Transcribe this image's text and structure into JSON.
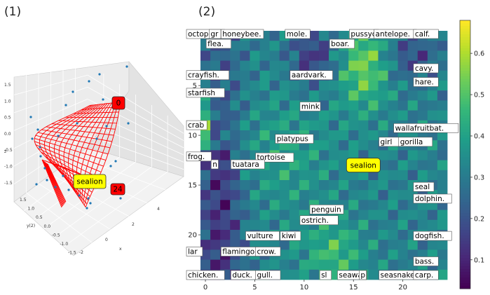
{
  "panel_labels": [
    "(1)",
    "(2)"
  ],
  "chart_data": [
    {
      "type": "scatter",
      "projection": "3d",
      "surface_color": "#ff0000",
      "point_color": "#1f77b4",
      "annotations": [
        {
          "text": "0",
          "style": "red"
        },
        {
          "text": "sealion",
          "style": "yellow"
        },
        {
          "text": "24",
          "style": "red"
        }
      ],
      "xlabel": "x",
      "ylabel": "y(2)",
      "zlabel": "z",
      "x_ticks": [
        "-2",
        "0",
        "2",
        "4"
      ],
      "y_ticks": [
        "1.5",
        "1.0",
        "0.5",
        "0.0",
        "-0.5",
        "-1.0",
        "-1.5"
      ],
      "z_ticks": [
        "1.5",
        "1.0",
        "0.5",
        "0.0",
        "-0.5",
        "-1.0",
        "-1.5"
      ]
    },
    {
      "type": "heatmap",
      "colormap": "viridis",
      "grid": [
        25,
        25
      ],
      "xlim": [
        0,
        24
      ],
      "ylim": [
        0,
        24
      ],
      "x_ticks": [
        "0",
        "5",
        "10",
        "15",
        "20"
      ],
      "y_ticks": [
        "5",
        "10",
        "15",
        "20"
      ],
      "colorbar_ticks": [
        "0.1",
        "0.2",
        "0.3",
        "0.4",
        "0.5",
        "0.6"
      ],
      "colorbar_range": [
        0.03,
        0.68
      ],
      "highlight": {
        "text": "sealion",
        "x": 16.5,
        "y": 13.5
      },
      "labels": [
        {
          "text": "octopus.",
          "x": 0,
          "y": 0
        },
        {
          "text": "gr",
          "x": 2.3,
          "y": 0
        },
        {
          "text": "honeybee.",
          "x": 3.5,
          "y": 0
        },
        {
          "text": "mole.",
          "x": 10,
          "y": 0
        },
        {
          "text": "pussyc",
          "x": 16.5,
          "y": 0
        },
        {
          "text": "antelope.",
          "x": 19,
          "y": 0
        },
        {
          "text": "calf.",
          "x": 23,
          "y": 0
        },
        {
          "text": "flea.",
          "x": 2,
          "y": 1
        },
        {
          "text": "boar.",
          "x": 14.5,
          "y": 1
        },
        {
          "text": "cavy.",
          "x": 23,
          "y": 3.5
        },
        {
          "text": "crayfish.",
          "x": 0,
          "y": 4.2
        },
        {
          "text": "aardvark.",
          "x": 10.5,
          "y": 4.2
        },
        {
          "text": "hare.",
          "x": 23,
          "y": 4.9
        },
        {
          "text": "starfish",
          "x": 0,
          "y": 6
        },
        {
          "text": "mink",
          "x": 11.5,
          "y": 7.4
        },
        {
          "text": "crab",
          "x": 0,
          "y": 9.3
        },
        {
          "text": "wallafruitbat.",
          "x": 21,
          "y": 9.6
        },
        {
          "text": "platypus",
          "x": 9,
          "y": 10.7
        },
        {
          "text": "girl",
          "x": 19.5,
          "y": 11
        },
        {
          "text": "gorilla",
          "x": 21.5,
          "y": 11
        },
        {
          "text": "frog.",
          "x": 0,
          "y": 12.5
        },
        {
          "text": "tortoise",
          "x": 7,
          "y": 12.6
        },
        {
          "text": "n",
          "x": 2.5,
          "y": 13.3
        },
        {
          "text": "tuatara",
          "x": 4.5,
          "y": 13.3
        },
        {
          "text": "seal",
          "x": 23,
          "y": 15.6
        },
        {
          "text": "dolphin.",
          "x": 23,
          "y": 16.8
        },
        {
          "text": "penguin",
          "x": 12.5,
          "y": 17.9
        },
        {
          "text": "ostrich.",
          "x": 11.5,
          "y": 19
        },
        {
          "text": "vulture",
          "x": 6,
          "y": 20.6
        },
        {
          "text": "kiwi",
          "x": 9.5,
          "y": 20.6
        },
        {
          "text": "dogfish.",
          "x": 23,
          "y": 20.6
        },
        {
          "text": "lar",
          "x": 0,
          "y": 22.2
        },
        {
          "text": "flamingo",
          "x": 3.5,
          "y": 22.2
        },
        {
          "text": "crow.",
          "x": 7,
          "y": 22.2
        },
        {
          "text": "bass.",
          "x": 23,
          "y": 23.2
        },
        {
          "text": "chicken.",
          "x": 0,
          "y": 24.6
        },
        {
          "text": "duck.",
          "x": 4.5,
          "y": 24.6
        },
        {
          "text": "gull.",
          "x": 7,
          "y": 24.6
        },
        {
          "text": "sl",
          "x": 13.5,
          "y": 24.6
        },
        {
          "text": "seawas",
          "x": 15.3,
          "y": 24.6
        },
        {
          "text": "p",
          "x": 17.5,
          "y": 24.6
        },
        {
          "text": "seasnake",
          "x": 19.5,
          "y": 24.6
        },
        {
          "text": "carp.",
          "x": 23,
          "y": 24.6
        }
      ]
    }
  ]
}
